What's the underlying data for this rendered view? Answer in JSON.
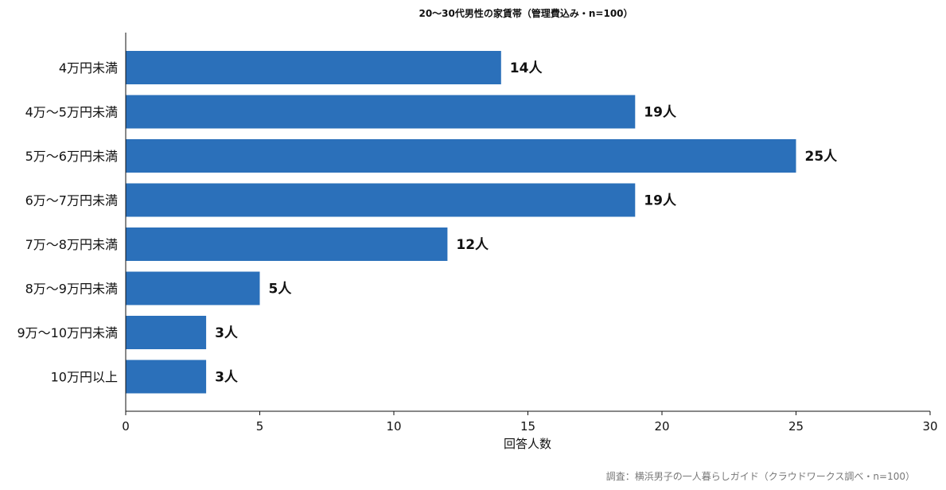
{
  "chart_data": {
    "type": "bar",
    "orientation": "horizontal",
    "title": "20〜30代男性の家賃帯（管理費込み・n=100）",
    "xlabel": "回答人数",
    "ylabel": "",
    "categories": [
      "4万円未満",
      "4万〜5万円未満",
      "5万〜6万円未満",
      "6万〜7万円未満",
      "7万〜8万円未満",
      "8万〜9万円未満",
      "9万〜10万円未満",
      "10万円以上"
    ],
    "values": [
      14,
      19,
      25,
      19,
      12,
      5,
      3,
      3
    ],
    "data_labels": [
      "14人",
      "19人",
      "25人",
      "19人",
      "12人",
      "5人",
      "3人",
      "3人"
    ],
    "xlim": [
      0,
      30
    ],
    "xticks": [
      "0",
      "5",
      "10",
      "15",
      "20",
      "25",
      "30"
    ],
    "grid": false,
    "bar_color": "#2b70ba"
  },
  "source": "調査：横浜男子の一人暮らしガイド（クラウドワークス調べ・n=100）"
}
